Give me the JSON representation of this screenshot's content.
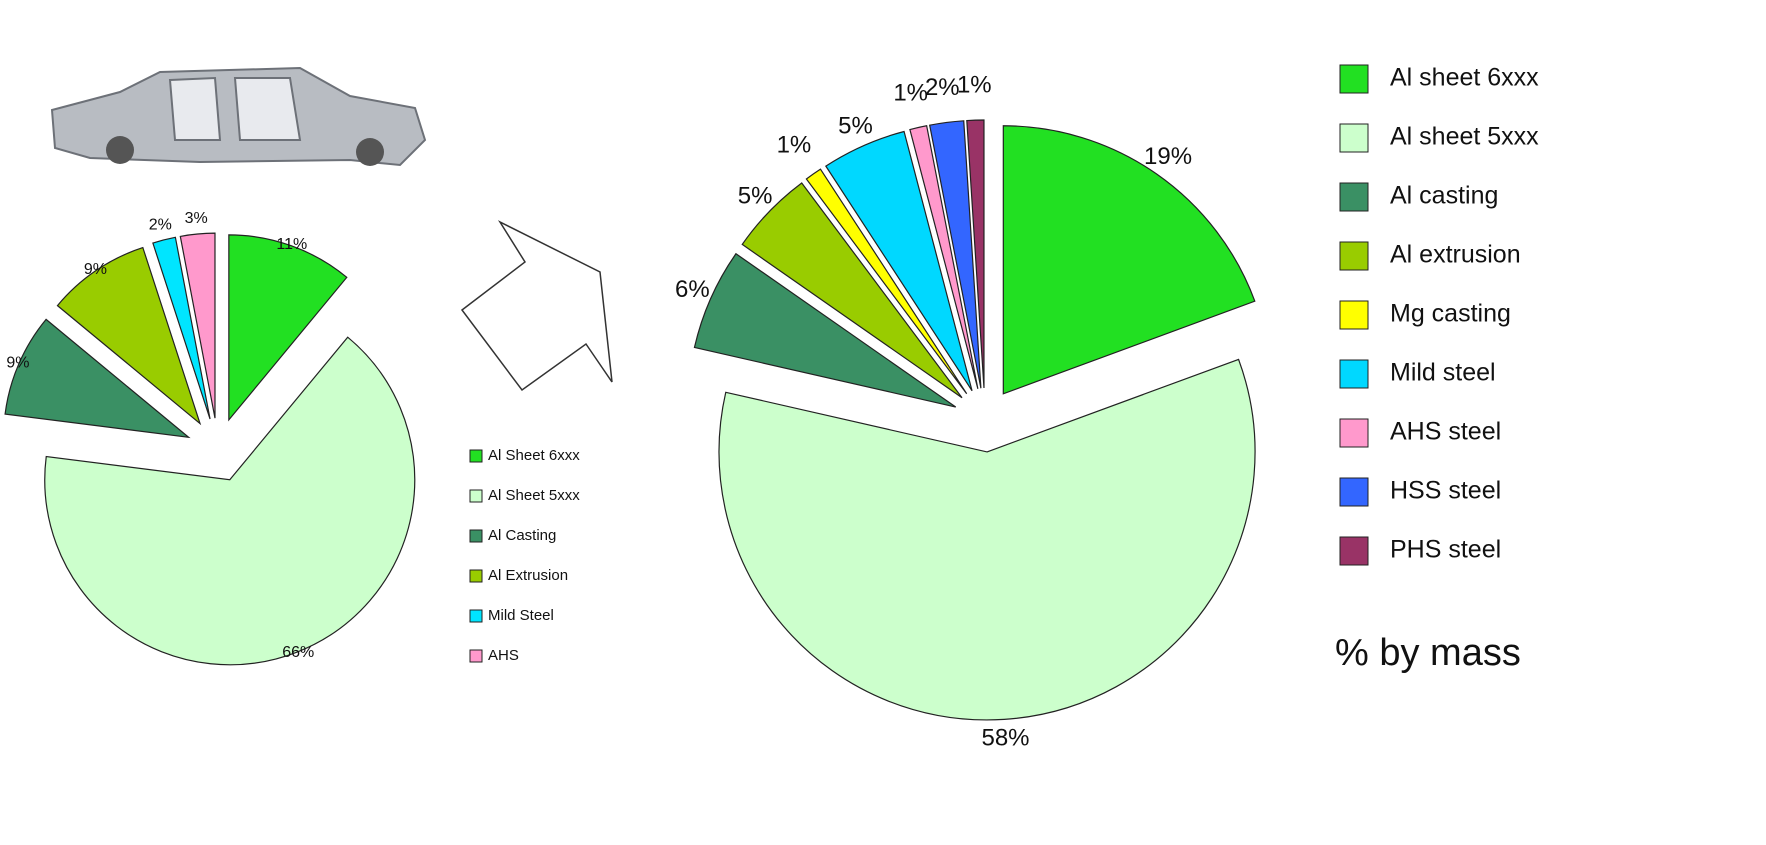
{
  "chart_data": [
    {
      "type": "pie",
      "categories": [
        "Al Sheet 6xxx",
        "Al Sheet 5xxx",
        "Al Casting",
        "Al Extrusion",
        "Mild Steel",
        "AHS"
      ],
      "values": [
        11,
        66,
        9,
        9,
        2,
        3
      ],
      "value_labels": [
        "11%",
        "66%",
        "9%",
        "9%",
        "2%",
        "3%"
      ],
      "colors": [
        "#22e022",
        "#ccffcc",
        "#3a9064",
        "#99cc00",
        "#00e5ff",
        "#ff99cc"
      ]
    },
    {
      "type": "pie",
      "categories": [
        "Al sheet 6xxx",
        "Al sheet 5xxx",
        "Al casting",
        "Al extrusion",
        "Mg casting",
        "Mild steel",
        "AHS steel",
        "HSS steel",
        "PHS steel"
      ],
      "values": [
        19,
        58,
        6,
        5,
        1,
        5,
        1,
        2,
        1
      ],
      "value_labels": [
        "19%",
        "58%",
        "6%",
        "5%",
        "1%",
        "5%",
        "1%",
        "2%",
        "1%"
      ],
      "colors": [
        "#22e022",
        "#ccffcc",
        "#3a9064",
        "#99cc00",
        "#ffff00",
        "#00d8ff",
        "#ff99cc",
        "#3366ff",
        "#993366"
      ],
      "annotation": "% by mass"
    }
  ]
}
